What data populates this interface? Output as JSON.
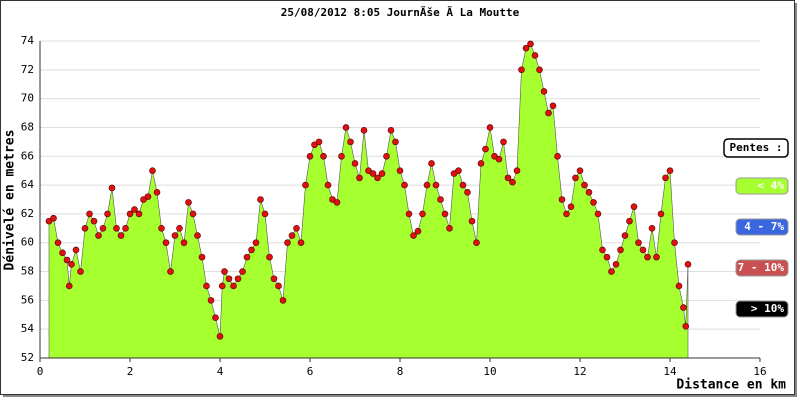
{
  "chart_data": {
    "type": "area",
    "title": "25/08/2012 8:05 JournÃše Ã  La Moutte",
    "y_label": "Dénivelé en metres",
    "x_label": "Distance en km",
    "x": [
      0.2,
      0.3,
      0.4,
      0.5,
      0.6,
      0.65,
      0.7,
      0.8,
      0.9,
      1.0,
      1.1,
      1.2,
      1.3,
      1.4,
      1.5,
      1.6,
      1.7,
      1.8,
      1.9,
      2.0,
      2.1,
      2.2,
      2.3,
      2.4,
      2.5,
      2.6,
      2.7,
      2.8,
      2.9,
      3.0,
      3.1,
      3.2,
      3.3,
      3.4,
      3.5,
      3.6,
      3.7,
      3.8,
      3.9,
      4.0,
      4.05,
      4.1,
      4.2,
      4.3,
      4.4,
      4.5,
      4.6,
      4.7,
      4.8,
      4.9,
      5.0,
      5.1,
      5.2,
      5.3,
      5.4,
      5.5,
      5.6,
      5.7,
      5.8,
      5.9,
      6.0,
      6.1,
      6.2,
      6.3,
      6.4,
      6.5,
      6.6,
      6.7,
      6.8,
      6.9,
      7.0,
      7.1,
      7.2,
      7.3,
      7.4,
      7.5,
      7.6,
      7.7,
      7.8,
      7.9,
      8.0,
      8.1,
      8.2,
      8.3,
      8.4,
      8.5,
      8.6,
      8.7,
      8.8,
      8.9,
      9.0,
      9.1,
      9.2,
      9.3,
      9.4,
      9.5,
      9.6,
      9.7,
      9.8,
      9.9,
      10.0,
      10.1,
      10.2,
      10.3,
      10.4,
      10.5,
      10.6,
      10.7,
      10.8,
      10.9,
      11.0,
      11.1,
      11.2,
      11.3,
      11.4,
      11.5,
      11.6,
      11.7,
      11.8,
      11.9,
      12.0,
      12.1,
      12.2,
      12.3,
      12.4,
      12.5,
      12.6,
      12.7,
      12.8,
      12.9,
      13.0,
      13.1,
      13.2,
      13.3,
      13.4,
      13.5,
      13.6,
      13.7,
      13.8,
      13.9,
      14.0,
      14.1,
      14.2,
      14.3,
      14.35,
      14.4
    ],
    "values": [
      61.5,
      61.7,
      60,
      59.3,
      58.8,
      57,
      58.5,
      59.5,
      58,
      61,
      62,
      61.5,
      60.5,
      61,
      62,
      63.8,
      61,
      60.5,
      61,
      62,
      62.3,
      62,
      63,
      63.2,
      65,
      63.5,
      61,
      60,
      58,
      60.5,
      61,
      60,
      62.8,
      62,
      60.5,
      59,
      57,
      56,
      54.8,
      53.5,
      57,
      58,
      57.5,
      57,
      57.5,
      58,
      59,
      59.5,
      60,
      63,
      62,
      59,
      57.5,
      57,
      56,
      60,
      60.5,
      61,
      60,
      64,
      66,
      66.8,
      67,
      66,
      64,
      63,
      62.8,
      66,
      68,
      67,
      65.5,
      64.5,
      67.8,
      65,
      64.8,
      64.5,
      64.8,
      66,
      67.8,
      67,
      65,
      64,
      62,
      60.5,
      60.8,
      62,
      64,
      65.5,
      64,
      63,
      62,
      61,
      64.8,
      65,
      64,
      63.5,
      61.5,
      60,
      65.5,
      66.5,
      68,
      66,
      65.8,
      67,
      64.5,
      64.2,
      65,
      72,
      73.5,
      73.8,
      73,
      72,
      70.5,
      69,
      69.5,
      66,
      63,
      62,
      62.5,
      64.5,
      65,
      64,
      63.5,
      62.8,
      62,
      59.5,
      59,
      58,
      58.5,
      59.5,
      60.5,
      61.5,
      62.5,
      60,
      59.5,
      59,
      61,
      59,
      62,
      64.5,
      65,
      60,
      57,
      55.5,
      54.2,
      58.5
    ],
    "color": "#a6ff2e",
    "marker_color": "#e01010",
    "xlim": [
      0,
      16
    ],
    "xticks": [
      0,
      2,
      4,
      6,
      8,
      10,
      12,
      14,
      16
    ],
    "ylim": [
      52,
      74
    ],
    "yticks": [
      52,
      54,
      56,
      58,
      60,
      62,
      64,
      66,
      68,
      70,
      72,
      74
    ],
    "grid": true,
    "legend": {
      "title": "Pentes :",
      "items": [
        {
          "label": "< 4%",
          "color": "#a6ff2e"
        },
        {
          "label": "4 - 7%",
          "color": "#3a66e0"
        },
        {
          "label": "7 - 10%",
          "color": "#c85050"
        },
        {
          "label": "> 10%",
          "color": "#000000"
        }
      ]
    }
  }
}
